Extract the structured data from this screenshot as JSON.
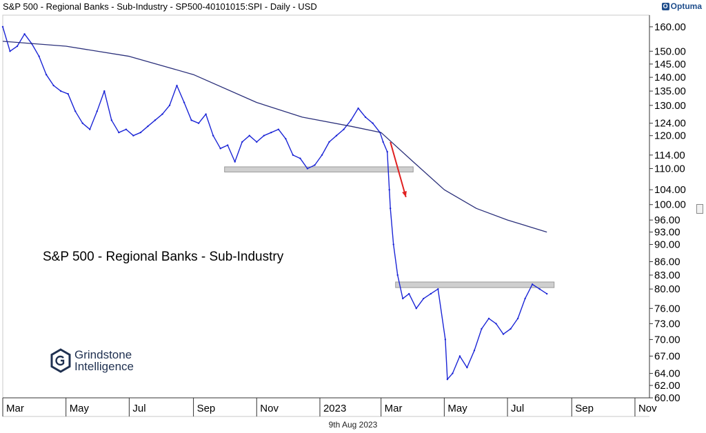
{
  "header": {
    "title": "S&P 500 - Regional Banks - Sub-Industry - SP500-40101015:SPI - Daily - USD",
    "brand": "Optuma",
    "brand_mark": "O"
  },
  "footer": {
    "date": "9th Aug 2023"
  },
  "watermark": {
    "line1": "Grindstone",
    "line2": "Intelligence"
  },
  "colors": {
    "price": "#1a24d6",
    "moving_average": "#2a2f7a",
    "zone": "#cfcfcf",
    "arrow": "#e02020"
  },
  "icons": [
    "optuma-logo-icon",
    "grindstone-logo-icon",
    "scroll-handle-icon"
  ],
  "chart_data": {
    "type": "line",
    "title": "S&P 500 - Regional Banks - Sub-Industry",
    "scale": "log",
    "ylim": [
      60,
      165
    ],
    "y_ticks": [
      "160.00",
      "150.00",
      "145.00",
      "140.00",
      "135.00",
      "130.00",
      "124.00",
      "120.00",
      "114.00",
      "110.00",
      "104.00",
      "100.00",
      "96.00",
      "93.00",
      "90.00",
      "86.00",
      "83.00",
      "80.00",
      "76.00",
      "73.00",
      "70.00",
      "67.00",
      "64.00",
      "62.00",
      "60.00"
    ],
    "x_ticks": [
      "Mar",
      "May",
      "Jul",
      "Sep",
      "Nov",
      "2023",
      "Mar",
      "May",
      "Jul",
      "Sep",
      "Nov"
    ],
    "xlim": [
      "2022-03-01",
      "2023-11-15"
    ],
    "series": [
      {
        "name": "",
        "kind": "price",
        "points": [
          [
            "2022-03-01",
            160
          ],
          [
            "2022-03-08",
            150
          ],
          [
            "2022-03-15",
            152
          ],
          [
            "2022-03-22",
            157
          ],
          [
            "2022-03-29",
            153
          ],
          [
            "2022-04-05",
            148
          ],
          [
            "2022-04-12",
            141
          ],
          [
            "2022-04-19",
            137
          ],
          [
            "2022-04-26",
            135
          ],
          [
            "2022-05-03",
            134
          ],
          [
            "2022-05-10",
            128
          ],
          [
            "2022-05-17",
            124
          ],
          [
            "2022-05-24",
            122
          ],
          [
            "2022-05-31",
            128
          ],
          [
            "2022-06-07",
            135
          ],
          [
            "2022-06-14",
            125
          ],
          [
            "2022-06-21",
            121
          ],
          [
            "2022-06-28",
            122
          ],
          [
            "2022-07-05",
            120
          ],
          [
            "2022-07-12",
            121
          ],
          [
            "2022-07-19",
            123
          ],
          [
            "2022-07-26",
            125
          ],
          [
            "2022-08-02",
            127
          ],
          [
            "2022-08-09",
            130
          ],
          [
            "2022-08-16",
            137
          ],
          [
            "2022-08-23",
            131
          ],
          [
            "2022-08-30",
            125
          ],
          [
            "2022-09-06",
            124
          ],
          [
            "2022-09-13",
            127
          ],
          [
            "2022-09-20",
            120
          ],
          [
            "2022-09-27",
            116
          ],
          [
            "2022-10-04",
            117
          ],
          [
            "2022-10-11",
            112
          ],
          [
            "2022-10-18",
            118
          ],
          [
            "2022-10-25",
            120
          ],
          [
            "2022-11-01",
            118
          ],
          [
            "2022-11-08",
            120
          ],
          [
            "2022-11-15",
            121
          ],
          [
            "2022-11-22",
            122
          ],
          [
            "2022-11-29",
            119
          ],
          [
            "2022-12-06",
            114
          ],
          [
            "2022-12-13",
            113
          ],
          [
            "2022-12-20",
            110
          ],
          [
            "2022-12-27",
            111
          ],
          [
            "2023-01-03",
            114
          ],
          [
            "2023-01-10",
            118
          ],
          [
            "2023-01-17",
            120
          ],
          [
            "2023-01-24",
            122
          ],
          [
            "2023-01-31",
            125
          ],
          [
            "2023-02-07",
            129
          ],
          [
            "2023-02-14",
            126
          ],
          [
            "2023-02-21",
            124
          ],
          [
            "2023-02-28",
            121
          ],
          [
            "2023-03-03",
            118
          ],
          [
            "2023-03-07",
            115
          ],
          [
            "2023-03-09",
            104
          ],
          [
            "2023-03-10",
            99
          ],
          [
            "2023-03-13",
            90
          ],
          [
            "2023-03-17",
            83
          ],
          [
            "2023-03-22",
            78
          ],
          [
            "2023-03-28",
            79
          ],
          [
            "2023-04-04",
            76
          ],
          [
            "2023-04-11",
            78
          ],
          [
            "2023-04-18",
            79
          ],
          [
            "2023-04-25",
            80
          ],
          [
            "2023-05-02",
            70
          ],
          [
            "2023-05-04",
            63
          ],
          [
            "2023-05-09",
            64
          ],
          [
            "2023-05-16",
            67
          ],
          [
            "2023-05-23",
            65
          ],
          [
            "2023-05-30",
            68
          ],
          [
            "2023-06-06",
            72
          ],
          [
            "2023-06-13",
            74
          ],
          [
            "2023-06-20",
            73
          ],
          [
            "2023-06-27",
            71
          ],
          [
            "2023-07-04",
            72
          ],
          [
            "2023-07-11",
            74
          ],
          [
            "2023-07-18",
            78
          ],
          [
            "2023-07-25",
            81
          ],
          [
            "2023-08-01",
            80
          ],
          [
            "2023-08-08",
            79
          ]
        ]
      },
      {
        "name": "",
        "kind": "moving_average",
        "points": [
          [
            "2022-03-01",
            154
          ],
          [
            "2022-05-01",
            152
          ],
          [
            "2022-07-01",
            148
          ],
          [
            "2022-09-01",
            141
          ],
          [
            "2022-11-01",
            131
          ],
          [
            "2022-12-15",
            126
          ],
          [
            "2023-01-31",
            123
          ],
          [
            "2023-03-01",
            121
          ],
          [
            "2023-04-01",
            112
          ],
          [
            "2023-05-01",
            104
          ],
          [
            "2023-06-01",
            99
          ],
          [
            "2023-07-01",
            96
          ],
          [
            "2023-08-08",
            93
          ]
        ]
      }
    ],
    "zones": [
      {
        "from": "2022-10-01",
        "to": "2023-04-01",
        "low": 109,
        "high": 110.5
      },
      {
        "from": "2023-03-15",
        "to": "2023-08-15",
        "low": 80.3,
        "high": 81.5
      }
    ],
    "annotations": [
      {
        "type": "arrow",
        "from": [
          "2023-03-10",
          118
        ],
        "to": [
          "2023-03-25",
          102
        ]
      }
    ]
  }
}
